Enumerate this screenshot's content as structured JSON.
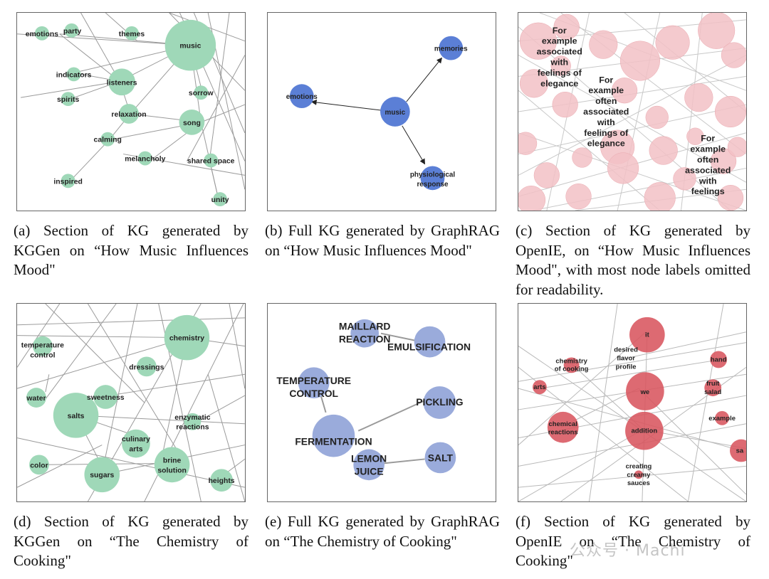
{
  "panels": [
    {
      "id": "a",
      "caption": "(a) Section of KG generated by KGGen on “How Music Influences Mood\"",
      "nodes": [
        "emotions",
        "party",
        "themes",
        "music",
        "indicators",
        "listeners",
        "spirits",
        "relaxation",
        "sorrow",
        "song",
        "calming",
        "melancholy",
        "shared space",
        "inspired",
        "unity"
      ]
    },
    {
      "id": "b",
      "caption": "(b) Full KG generated by GraphRAG on “How Music Influences Mood\"",
      "nodes": [
        "memories",
        "emotions",
        "music",
        "physiological response"
      ]
    },
    {
      "id": "c",
      "caption": "(c) Section of KG generated by OpenIE, on “How Music Influences Mood\", with most node labels omitted for readability.",
      "nodes": [
        "For example associated with feelings of elegance",
        "For example often associated with feelings of elegance",
        "For example often associated with feelings"
      ]
    },
    {
      "id": "d",
      "caption": "(d) Section of KG generated by KGGen on “The Chemistry of Cooking\"",
      "nodes": [
        "temperature control",
        "chemistry",
        "dressings",
        "water",
        "sweetness",
        "salts",
        "enzymatic reactions",
        "culinary arts",
        "brine solution",
        "color",
        "sugars",
        "heights"
      ]
    },
    {
      "id": "e",
      "caption": "(e) Full KG generated by GraphRAG on “The Chemistry of Cooking\"",
      "nodes": [
        "MAILLARD REACTION",
        "EMULSIFICATION",
        "TEMPERATURE CONTROL",
        "PICKLING",
        "FERMENTATION",
        "LEMON JUICE",
        "SALT"
      ]
    },
    {
      "id": "f",
      "caption": "(f) Section of KG generated by OpenIE on “The Chemistry of Cooking\"",
      "nodes": [
        "it",
        "chemistry of cooking",
        "desired flavor profile",
        "hand",
        "arts",
        "we",
        "fruit salad",
        "chemical reactions",
        "addition",
        "example",
        "sa",
        "creating creamy sauces"
      ]
    }
  ],
  "watermark": "公众号 · Machi",
  "colors": {
    "kggen": "#9fd8b8",
    "graphrag_a": "#5b7fd6",
    "graphrag_e": "#9aabdb",
    "openie_c": "#f2c1c6",
    "openie_f": "#d8555f",
    "edge": "#9a9a9a"
  }
}
